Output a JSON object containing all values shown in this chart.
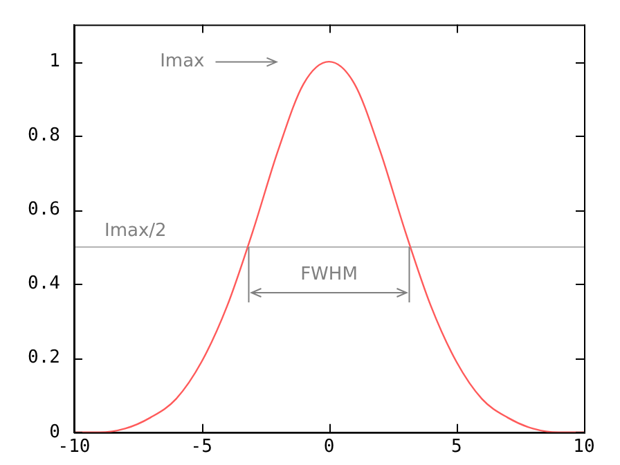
{
  "chart_data": {
    "type": "line",
    "x": [
      -10,
      -9,
      -8,
      -7,
      -6,
      -5,
      -4,
      -3,
      -2,
      -1,
      0,
      1,
      2,
      3,
      4,
      5,
      6,
      7,
      8,
      9,
      10
    ],
    "series": [
      {
        "color": "#ff5a5a",
        "values": [
          0,
          0,
          0.01,
          0.04,
          0.09,
          0.19,
          0.34,
          0.54,
          0.76,
          0.94,
          1,
          0.94,
          0.76,
          0.54,
          0.34,
          0.19,
          0.09,
          0.04,
          0.01,
          0,
          0
        ]
      }
    ],
    "xlim": [
      -10,
      10
    ],
    "xticks": [
      -10,
      -5,
      0,
      5,
      10
    ],
    "ylim": [
      0,
      1.1
    ],
    "yticks": [
      0,
      0.2,
      0.4,
      0.6,
      0.8,
      1
    ],
    "ref_lines": [
      {
        "axis": "y",
        "value": 0.5,
        "label": "Imax/2",
        "color": "#b4b4b4"
      }
    ],
    "annotations": [
      "Imax",
      {
        "text": "FWHM",
        "x": 0,
        "y": 0.5
      }
    ],
    "grid": false,
    "legend": false,
    "marker": "none",
    "line_style": "solid"
  }
}
